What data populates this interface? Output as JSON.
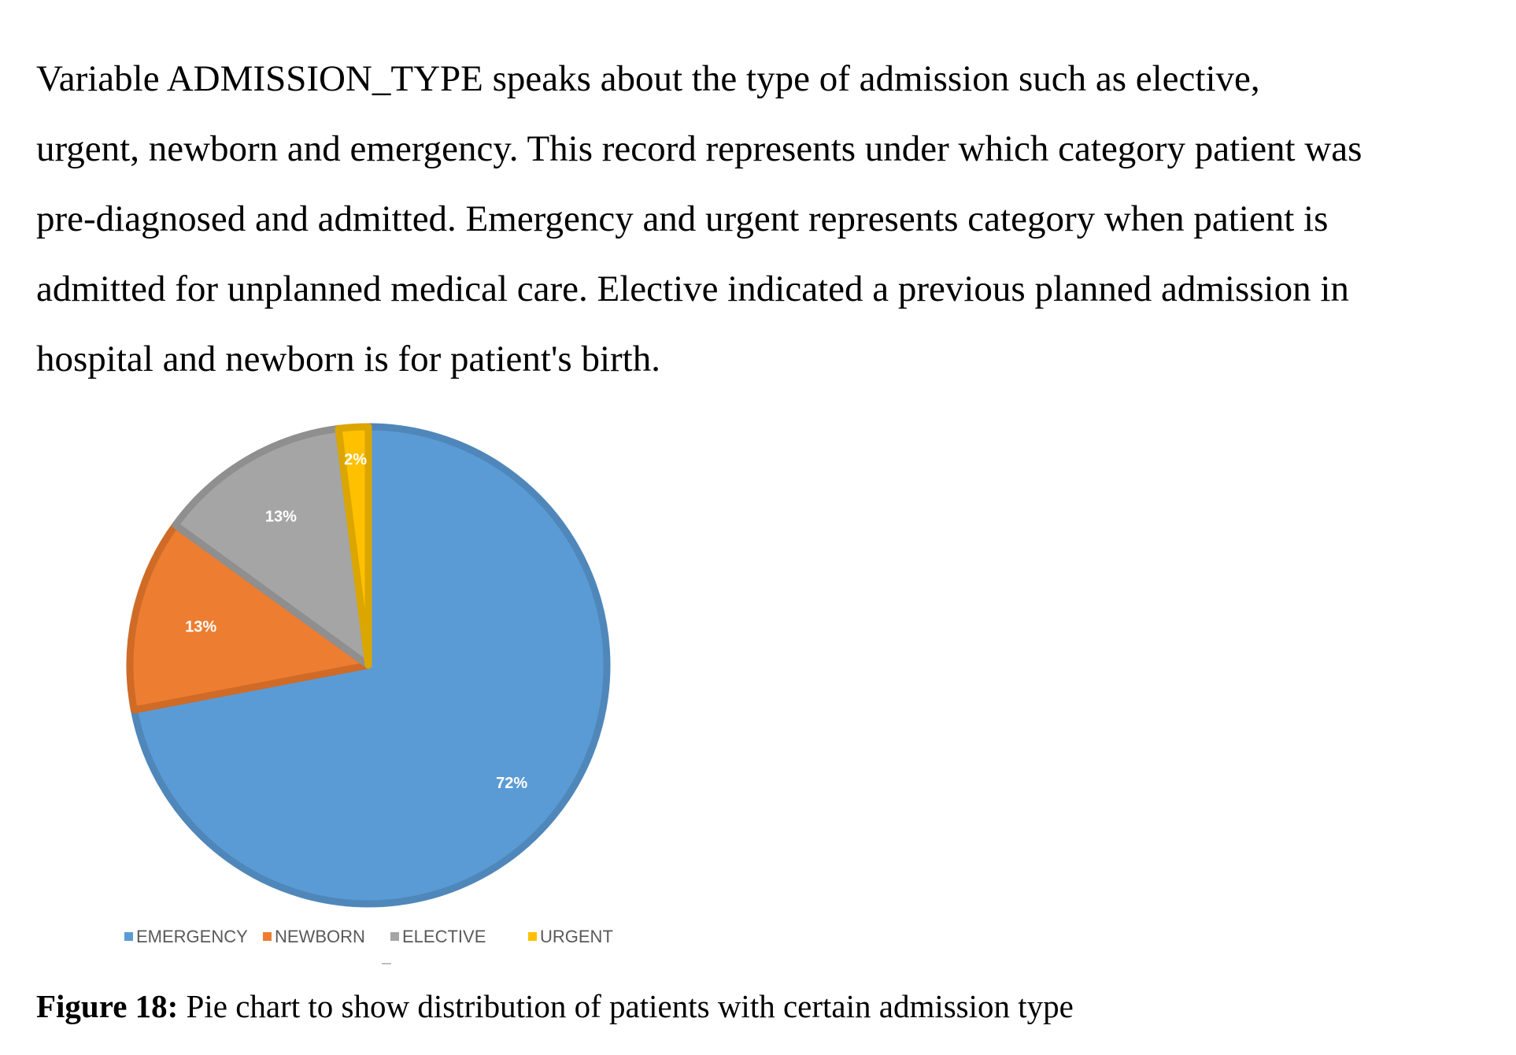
{
  "paragraph": {
    "lines": [
      "Variable ADMISSION_TYPE speaks about the type of admission such as elective,",
      "urgent, newborn and emergency. This record represents under which category patient was",
      "pre-diagnosed and admitted. Emergency and urgent represents category when patient is",
      "admitted for unplanned medical care. Elective indicated a previous planned admission in",
      "hospital and newborn is for patient's birth."
    ]
  },
  "chart_data": {
    "type": "pie",
    "categories": [
      "EMERGENCY",
      "NEWBORN",
      "ELECTIVE",
      "URGENT"
    ],
    "values": [
      72,
      13,
      13,
      2
    ],
    "data_labels": [
      "72%",
      "13%",
      "13%",
      "2%"
    ],
    "colors": [
      "#5b9bd5",
      "#ed7d31",
      "#a5a5a5",
      "#ffc000"
    ],
    "legend_position": "bottom",
    "title": ""
  },
  "legend": {
    "items": [
      {
        "label": "EMERGENCY",
        "color": "#5b9bd5"
      },
      {
        "label": "NEWBORN",
        "color": "#ed7d31"
      },
      {
        "label": "ELECTIVE",
        "color": "#a5a5a5"
      },
      {
        "label": "URGENT",
        "color": "#ffc000"
      }
    ]
  },
  "caption": {
    "label": "Figure 18:",
    "text": " Pie chart to show distribution of patients with certain admission type"
  }
}
